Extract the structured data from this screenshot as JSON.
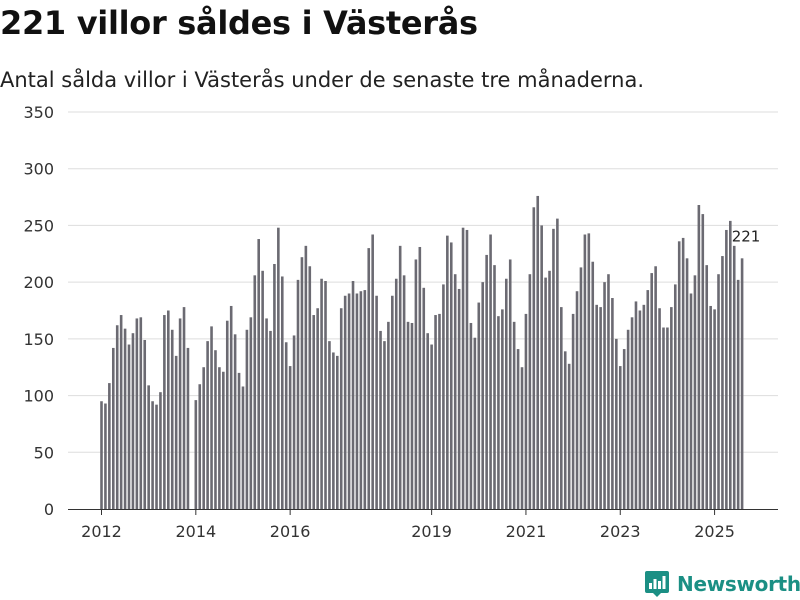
{
  "header": {
    "title": "221 villor såldes i Västerås",
    "subtitle": "Antal sålda villor i Västerås under de senaste tre månaderna."
  },
  "brand": {
    "name": "Newsworthy",
    "color": "#1b8f84",
    "icon": "bar-chart-logo-icon"
  },
  "colors": {
    "bar": "#6b6a72",
    "highlight": "#1a9c8f",
    "grid": "#dddddd",
    "axis": "#333333"
  },
  "chart_data": {
    "type": "bar",
    "title": "221 villor såldes i Västerås",
    "subtitle": "Antal sålda villor i Västerås under de senaste tre månaderna.",
    "xlabel": "",
    "ylabel": "",
    "ylim": [
      0,
      350
    ],
    "yticks": [
      0,
      50,
      100,
      150,
      200,
      250,
      300,
      350
    ],
    "grid": true,
    "legend": "none",
    "x_start": "2012-01",
    "x_end": "2025-09",
    "frequency": "monthly",
    "x_ticks": [
      {
        "label": "2012",
        "index": 0
      },
      {
        "label": "2014",
        "index": 24
      },
      {
        "label": "2016",
        "index": 48
      },
      {
        "label": "2019",
        "index": 84
      },
      {
        "label": "2021",
        "index": 108
      },
      {
        "label": "2023",
        "index": 132
      },
      {
        "label": "2025",
        "index": 156
      }
    ],
    "values": [
      95,
      93,
      111,
      142,
      162,
      171,
      159,
      145,
      155,
      168,
      169,
      149,
      109,
      95,
      92,
      103,
      171,
      175,
      158,
      135,
      168,
      178,
      142,
      0,
      96,
      110,
      125,
      148,
      161,
      140,
      125,
      121,
      166,
      179,
      154,
      120,
      108,
      158,
      169,
      206,
      238,
      210,
      168,
      157,
      216,
      248,
      205,
      147,
      126,
      153,
      202,
      222,
      232,
      214,
      171,
      177,
      203,
      201,
      148,
      138,
      135,
      177,
      188,
      190,
      201,
      190,
      192,
      193,
      230,
      242,
      188,
      157,
      148,
      165,
      188,
      203,
      232,
      206,
      165,
      164,
      220,
      231,
      195,
      155,
      145,
      171,
      172,
      198,
      241,
      235,
      207,
      194,
      248,
      246,
      164,
      151,
      182,
      200,
      224,
      242,
      215,
      170,
      176,
      203,
      220,
      165,
      141,
      125,
      172,
      207,
      266,
      276,
      250,
      204,
      210,
      247,
      256,
      178,
      139,
      128,
      172,
      192,
      213,
      242,
      243,
      218,
      180,
      178,
      200,
      207,
      186,
      150,
      126,
      141,
      158,
      169,
      183,
      175,
      180,
      193,
      208,
      214,
      177,
      160,
      160,
      178,
      198,
      236,
      239,
      221,
      190,
      206,
      268,
      260,
      215,
      179,
      176,
      207,
      223,
      246,
      254,
      232,
      202,
      221
    ],
    "highlight": {
      "index": 164,
      "label": "221",
      "value": 221
    }
  }
}
